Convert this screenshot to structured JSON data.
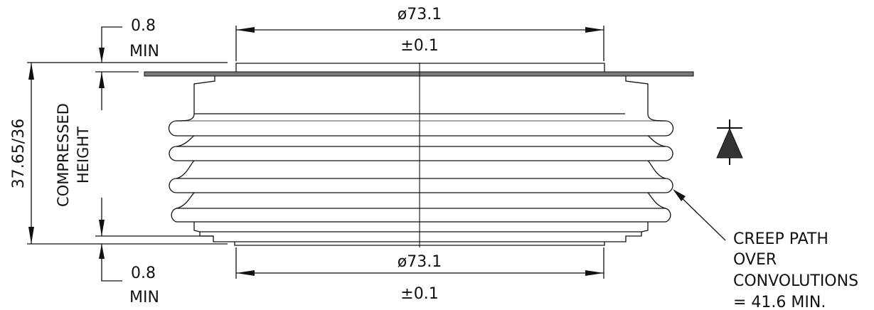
{
  "dimensions": {
    "top_diameter": "ø73.1",
    "top_tolerance": "±0.1",
    "bottom_diameter": "ø73.1",
    "bottom_tolerance": "±0.1",
    "top_gap_value": "0.8",
    "top_gap_suffix": "MIN",
    "bottom_gap_value": "0.8",
    "bottom_gap_suffix": "MIN",
    "overall_height": "37.65/36",
    "compressed_line1": "COMPRESSED",
    "compressed_line2": "HEIGHT"
  },
  "creep_note": {
    "line1": "CREEP PATH",
    "line2": "OVER",
    "line3": "CONVOLUTIONS",
    "line4": "= 41.6 MIN."
  },
  "symbol": "diode-symbol-icon",
  "colors": {
    "ink": "#111111",
    "paper": "#ffffff"
  }
}
